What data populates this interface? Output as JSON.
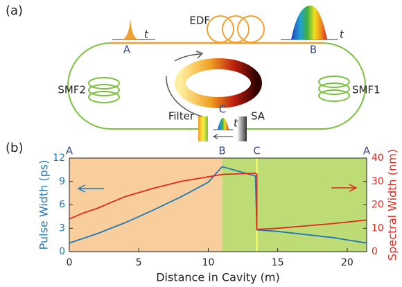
{
  "diagram": {
    "panel_label": "(a)",
    "edf": "EDF",
    "point_a": "A",
    "point_b": "B",
    "time_a": "t",
    "time_b": "t",
    "smf2": "SMF2",
    "smf1": "SMF1",
    "filter": "Filter",
    "point_c": "C",
    "sa": "SA",
    "time_c": "t"
  },
  "chart_data": {
    "type": "line",
    "panel_label": "(b)",
    "x_label": "Distance in Cavity (m)",
    "y_label": "Pulse Width (ps)",
    "y2_label": "Spectral Width (nm)",
    "xlim": [
      0,
      21.4
    ],
    "xticks": [
      0,
      5,
      10,
      15,
      20
    ],
    "ylim": [
      0,
      12
    ],
    "yticks": [
      0,
      3,
      6,
      9,
      12
    ],
    "y2lim": [
      0,
      40
    ],
    "y2ticks": [
      0,
      10,
      20,
      30,
      40
    ],
    "regions": [
      {
        "x": [
          0,
          11
        ],
        "color": "#f8cf9c"
      },
      {
        "x": [
          11,
          21.4
        ],
        "color": "#bedc75"
      }
    ],
    "marker_line": {
      "x": 13.5,
      "color": "#ffff66"
    },
    "annotations": [
      {
        "text": "A",
        "x": 0
      },
      {
        "text": "B",
        "x": 11
      },
      {
        "text": "C",
        "x": 13.5
      },
      {
        "text": "A",
        "x": 21.4
      }
    ],
    "series": [
      {
        "name": "Pulse Width",
        "color": "#1f77b4",
        "axis": "y",
        "x": [
          0,
          2,
          4,
          6,
          8,
          10,
          11,
          13.4,
          13.5,
          15,
          17,
          19,
          21.4
        ],
        "values": [
          1.1,
          2.3,
          3.7,
          5.3,
          7.0,
          8.9,
          10.9,
          9.7,
          2.8,
          2.6,
          2.2,
          1.8,
          1.1
        ]
      },
      {
        "name": "Spectral Width",
        "color": "#e0281e",
        "axis": "y2",
        "x": [
          0,
          1,
          2,
          3,
          4,
          6,
          8,
          10,
          11,
          13.4,
          13.5,
          13.5,
          15,
          17,
          19,
          21.4
        ],
        "values": [
          14,
          16.5,
          18.5,
          21,
          23.5,
          27,
          30,
          32,
          33,
          33.5,
          33,
          9.5,
          10,
          11,
          12,
          13.5
        ]
      }
    ]
  }
}
